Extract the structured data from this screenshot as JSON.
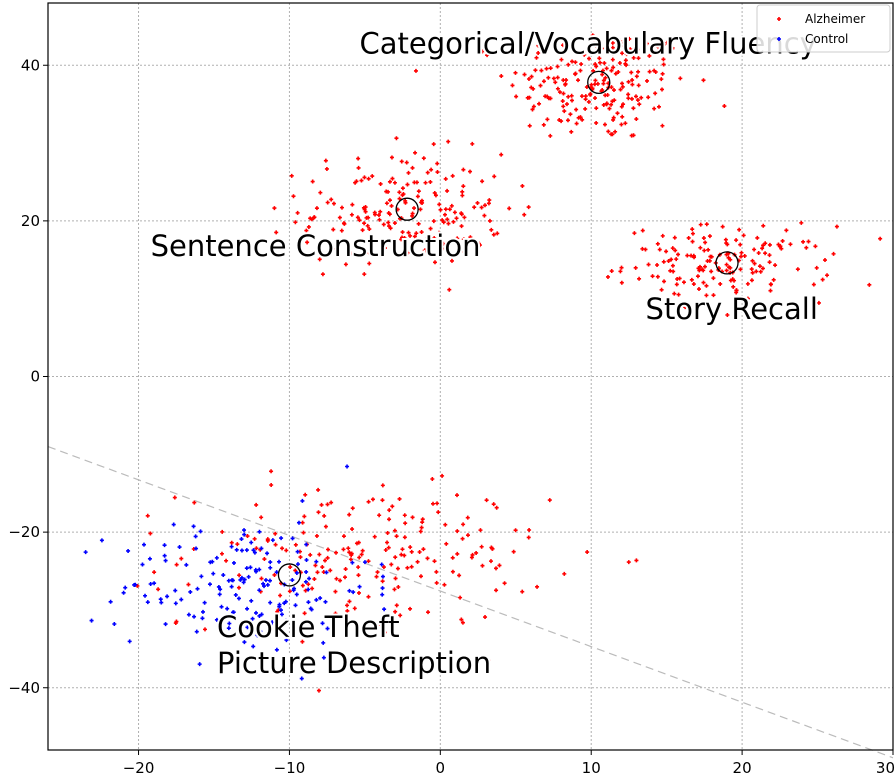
{
  "chart_data": {
    "type": "scatter",
    "title": "",
    "xlabel": "",
    "ylabel": "",
    "xlim": [
      -26,
      30
    ],
    "ylim": [
      -48,
      48
    ],
    "x_ticks": [
      -20,
      -10,
      0,
      10,
      20,
      30
    ],
    "y_ticks": [
      -40,
      -20,
      0,
      20,
      40
    ],
    "x_tick_labels": [
      "−20",
      "−10",
      "0",
      "10",
      "20",
      "30"
    ],
    "y_tick_labels": [
      "−40",
      "−20",
      "0",
      "20",
      "40"
    ],
    "grid": true,
    "legend_position": "top-right",
    "colors": {
      "alzheimer": "#ff0000",
      "control": "#0000ff",
      "grid": "#b0b0b0",
      "boundary": "#bbbbbb"
    },
    "series": [
      {
        "name": "Alzheimer",
        "color": "#ff0000",
        "clusters": [
          {
            "center": [
              10.5,
              37.5
            ],
            "spread": [
              4.0,
              5.0
            ],
            "count": 210
          },
          {
            "center": [
              -2.5,
              21.5
            ],
            "spread": [
              4.5,
              4.8
            ],
            "count": 190
          },
          {
            "center": [
              19.0,
              14.5
            ],
            "spread": [
              4.5,
              3.2
            ],
            "count": 165
          },
          {
            "center": [
              -5.0,
              -23.0
            ],
            "spread": [
              8.0,
              6.0
            ],
            "count": 220
          }
        ]
      },
      {
        "name": "Control",
        "color": "#0000ff",
        "clusters": [
          {
            "center": [
              -13.0,
              -27.0
            ],
            "spread": [
              5.5,
              6.0
            ],
            "count": 175
          }
        ]
      }
    ],
    "cluster_centroids": [
      {
        "x": 10.5,
        "y": 37.8
      },
      {
        "x": -2.2,
        "y": 21.5
      },
      {
        "x": 19.0,
        "y": 14.6
      },
      {
        "x": -10.0,
        "y": -25.5
      }
    ],
    "decision_boundary": {
      "from": [
        -26,
        -9
      ],
      "to": [
        30,
        -49
      ]
    },
    "annotations": [
      {
        "lines": [
          "Categorical/Vocabulary Fluency"
        ],
        "x": 9.8,
        "y": 41.5,
        "anchor": "middle"
      },
      {
        "lines": [
          "Sentence Construction"
        ],
        "x": -19.2,
        "y": 15.5,
        "anchor": "start"
      },
      {
        "lines": [
          "Story Recall"
        ],
        "x": 13.6,
        "y": 7.4,
        "anchor": "start"
      },
      {
        "lines": [
          "Cookie Theft",
          "Picture Description"
        ],
        "x": -14.8,
        "y": -33.5,
        "anchor": "start"
      }
    ]
  }
}
